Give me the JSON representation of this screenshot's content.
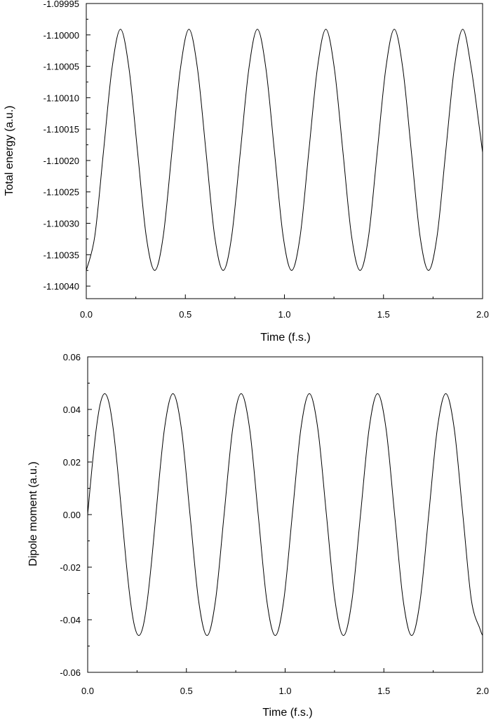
{
  "chart_data": [
    {
      "type": "line",
      "title": "",
      "xlabel": "Time (f.s.)",
      "ylabel": "Total energy (a.u.)",
      "xlim": [
        0.0,
        2.0
      ],
      "ylim": [
        -1.10042,
        -1.09995
      ],
      "xticks": [
        "0.0",
        "0.5",
        "1.0",
        "1.5",
        "2.0"
      ],
      "yticks": [
        "-1.09995",
        "-1.10000",
        "-1.10005",
        "-1.10010",
        "-1.10015",
        "-1.10020",
        "-1.10025",
        "-1.10030",
        "-1.10035",
        "-1.10040"
      ],
      "grid": false,
      "legend": "none",
      "series": [
        {
          "color": "#000000",
          "x": [
            0.0,
            0.0432,
            0.0864,
            0.1295,
            0.1727,
            0.2159,
            0.2591,
            0.3023,
            0.3455,
            0.3886,
            0.4318,
            0.475,
            0.5182,
            0.5614,
            0.6045,
            0.6477,
            0.6909,
            0.7341,
            0.7773,
            0.8205,
            0.8636,
            0.9068,
            0.95,
            0.9932,
            1.0364,
            1.0795,
            1.1227,
            1.1659,
            1.2091,
            1.2523,
            1.2955,
            1.3386,
            1.3818,
            1.425,
            1.4682,
            1.5114,
            1.5545,
            1.5977,
            1.6409,
            1.6841,
            1.7273,
            1.7705,
            1.8136,
            1.8568,
            1.9,
            1.9432,
            1.9864,
            2.0
          ],
          "y": [
            -1.100375,
            -1.10032,
            -1.100187,
            -1.100054,
            -1.099991,
            -1.100054,
            -1.100187,
            -1.10032,
            -1.100375,
            -1.10032,
            -1.100187,
            -1.100054,
            -1.099991,
            -1.100054,
            -1.100187,
            -1.10032,
            -1.100375,
            -1.10032,
            -1.100187,
            -1.100054,
            -1.099991,
            -1.100054,
            -1.100187,
            -1.10032,
            -1.100375,
            -1.10032,
            -1.100187,
            -1.100054,
            -1.099991,
            -1.100054,
            -1.100187,
            -1.10032,
            -1.100375,
            -1.10032,
            -1.100187,
            -1.100054,
            -1.099991,
            -1.100054,
            -1.100187,
            -1.10032,
            -1.100375,
            -1.10032,
            -1.100187,
            -1.100054,
            -1.099991,
            -1.100054,
            -1.100154,
            -1.100187
          ]
        }
      ]
    },
    {
      "type": "line",
      "title": "",
      "xlabel": "Time (f.s.)",
      "ylabel": "Dipole moment (a.u.)",
      "xlim": [
        0.0,
        2.0
      ],
      "ylim": [
        -0.06,
        0.06
      ],
      "xticks": [
        "0.0",
        "0.5",
        "1.0",
        "1.5",
        "2.0"
      ],
      "yticks": [
        "0.06",
        "0.04",
        "0.02",
        "0.00",
        "-0.02",
        "-0.04",
        "-0.06"
      ],
      "grid": false,
      "legend": "none",
      "series": [
        {
          "color": "#000000",
          "x": [
            0.0,
            0.0216,
            0.0432,
            0.0648,
            0.0864,
            0.108,
            0.1295,
            0.1511,
            0.1727,
            0.1943,
            0.2159,
            0.2375,
            0.2591,
            0.2807,
            0.3023,
            0.3239,
            0.3455,
            0.3886,
            0.4318,
            0.475,
            0.5182,
            0.5614,
            0.6045,
            0.6477,
            0.6909,
            0.7341,
            0.7773,
            0.8205,
            0.8636,
            0.9068,
            0.95,
            0.9932,
            1.0364,
            1.0795,
            1.1227,
            1.1659,
            1.2091,
            1.2523,
            1.2955,
            1.3386,
            1.3818,
            1.425,
            1.4682,
            1.5114,
            1.5545,
            1.5977,
            1.6409,
            1.6841,
            1.7273,
            1.7705,
            1.8136,
            1.8568,
            1.9,
            1.9432,
            1.9864,
            2.0
          ],
          "y": [
            0.0,
            0.0176,
            0.0325,
            0.0425,
            0.046,
            0.0425,
            0.0325,
            0.0176,
            0.0,
            -0.0176,
            -0.0325,
            -0.0425,
            -0.046,
            -0.0425,
            -0.0325,
            -0.0176,
            0.0,
            0.0325,
            0.046,
            0.0325,
            0.0,
            -0.0325,
            -0.046,
            -0.0325,
            0.0,
            0.0325,
            0.046,
            0.0325,
            0.0,
            -0.0325,
            -0.046,
            -0.0325,
            0.0,
            0.0325,
            0.046,
            0.0325,
            0.0,
            -0.0325,
            -0.046,
            -0.0325,
            0.0,
            0.0325,
            0.046,
            0.0325,
            0.0,
            -0.0325,
            -0.046,
            -0.0325,
            0.0,
            0.0325,
            0.046,
            0.0325,
            0.0,
            -0.0325,
            -0.0434,
            -0.046
          ]
        }
      ]
    }
  ]
}
